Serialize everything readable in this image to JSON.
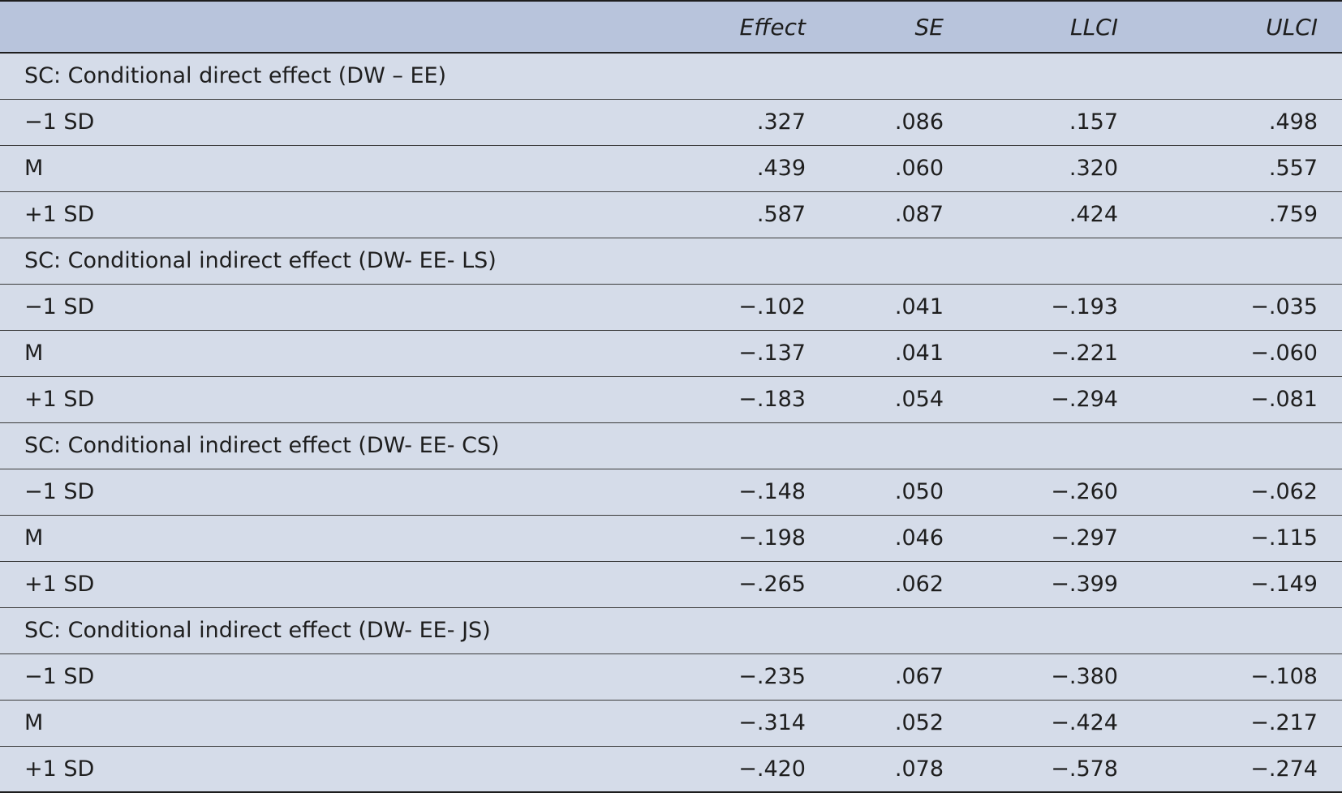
{
  "table": {
    "columns": {
      "label": "",
      "effect": "Effect",
      "se": "SE",
      "llci": "LLCI",
      "ulci": "ULCI"
    },
    "sections": [
      {
        "title": "SC: Conditional direct effect (DW – EE)",
        "rows": [
          {
            "label": "−1 SD",
            "effect": ".327",
            "se": ".086",
            "llci": ".157",
            "ulci": ".498"
          },
          {
            "label": "M",
            "effect": ".439",
            "se": ".060",
            "llci": ".320",
            "ulci": ".557"
          },
          {
            "label": "+1 SD",
            "effect": ".587",
            "se": ".087",
            "llci": ".424",
            "ulci": ".759"
          }
        ]
      },
      {
        "title": "SC: Conditional indirect effect (DW- EE- LS)",
        "rows": [
          {
            "label": "−1 SD",
            "effect": "−.102",
            "se": ".041",
            "llci": "−.193",
            "ulci": "−.035"
          },
          {
            "label": "M",
            "effect": "−.137",
            "se": ".041",
            "llci": "−.221",
            "ulci": "−.060"
          },
          {
            "label": "+1 SD",
            "effect": "−.183",
            "se": ".054",
            "llci": "−.294",
            "ulci": "−.081"
          }
        ]
      },
      {
        "title": "SC: Conditional indirect effect (DW- EE- CS)",
        "rows": [
          {
            "label": "−1 SD",
            "effect": "−.148",
            "se": ".050",
            "llci": "−.260",
            "ulci": "−.062"
          },
          {
            "label": "M",
            "effect": "−.198",
            "se": ".046",
            "llci": "−.297",
            "ulci": "−.115"
          },
          {
            "label": "+1 SD",
            "effect": "−.265",
            "se": ".062",
            "llci": "−.399",
            "ulci": "−.149"
          }
        ]
      },
      {
        "title": "SC: Conditional indirect effect (DW- EE- JS)",
        "rows": [
          {
            "label": "−1 SD",
            "effect": "−.235",
            "se": ".067",
            "llci": "−.380",
            "ulci": "−.108"
          },
          {
            "label": "M",
            "effect": "−.314",
            "se": ".052",
            "llci": "−.424",
            "ulci": "−.217"
          },
          {
            "label": "+1 SD",
            "effect": "−.420",
            "se": ".078",
            "llci": "−.578",
            "ulci": "−.274"
          }
        ]
      }
    ]
  }
}
